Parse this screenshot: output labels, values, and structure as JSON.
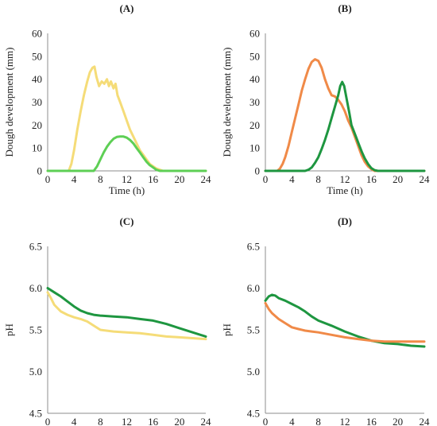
{
  "chart_data": [
    {
      "type": "line",
      "panel_label": "(A)",
      "xlabel": "Time (h)",
      "ylabel": "Dough development (mm)",
      "xlim": [
        0,
        24
      ],
      "ylim": [
        0,
        60
      ],
      "xticks": [
        0,
        4,
        8,
        12,
        16,
        20,
        24
      ],
      "yticks": [
        0,
        10,
        20,
        30,
        40,
        50,
        60
      ],
      "ytick_labels": [
        "0",
        "10",
        "20",
        "30",
        "40",
        "50",
        "60"
      ],
      "series": [
        {
          "color": "#f5dc78",
          "points": [
            [
              0,
              0
            ],
            [
              3.2,
              0
            ],
            [
              3.6,
              3
            ],
            [
              4.0,
              9
            ],
            [
              4.5,
              18
            ],
            [
              5.0,
              26
            ],
            [
              5.5,
              33
            ],
            [
              6.0,
              39
            ],
            [
              6.4,
              43
            ],
            [
              6.8,
              45
            ],
            [
              7.1,
              45.5
            ],
            [
              7.4,
              41
            ],
            [
              7.8,
              37
            ],
            [
              8.2,
              39
            ],
            [
              8.6,
              38
            ],
            [
              9.0,
              40
            ],
            [
              9.3,
              37
            ],
            [
              9.6,
              39
            ],
            [
              10.0,
              36
            ],
            [
              10.3,
              38
            ],
            [
              10.6,
              33
            ],
            [
              11.0,
              30
            ],
            [
              11.5,
              26
            ],
            [
              12.0,
              22
            ],
            [
              12.5,
              18
            ],
            [
              13.0,
              15
            ],
            [
              13.5,
              12
            ],
            [
              14.0,
              9
            ],
            [
              14.5,
              7
            ],
            [
              15.0,
              5
            ],
            [
              15.5,
              3
            ],
            [
              16.0,
              2
            ],
            [
              16.5,
              1
            ],
            [
              17.0,
              0.5
            ],
            [
              17.5,
              0
            ],
            [
              24,
              0
            ]
          ]
        },
        {
          "color": "#5ecf55",
          "points": [
            [
              0,
              0
            ],
            [
              7.0,
              0
            ],
            [
              7.5,
              2
            ],
            [
              8.0,
              5
            ],
            [
              8.5,
              8
            ],
            [
              9.0,
              10.5
            ],
            [
              9.5,
              12.5
            ],
            [
              10.0,
              14
            ],
            [
              10.5,
              14.8
            ],
            [
              11.0,
              15
            ],
            [
              11.5,
              15
            ],
            [
              12.0,
              14.5
            ],
            [
              12.5,
              13.5
            ],
            [
              13.0,
              12
            ],
            [
              13.5,
              10
            ],
            [
              14.0,
              8
            ],
            [
              14.5,
              6
            ],
            [
              15.0,
              4
            ],
            [
              15.5,
              2.5
            ],
            [
              16.0,
              1.5
            ],
            [
              16.5,
              0.5
            ],
            [
              17.0,
              0
            ],
            [
              24,
              0
            ]
          ]
        }
      ]
    },
    {
      "type": "line",
      "panel_label": "(B)",
      "xlabel": "Time (h)",
      "ylabel": "Dough development (mm)",
      "xlim": [
        0,
        24
      ],
      "ylim": [
        0,
        60
      ],
      "xticks": [
        0,
        4,
        8,
        12,
        16,
        20,
        24
      ],
      "yticks": [
        0,
        10,
        20,
        30,
        40,
        50,
        60
      ],
      "ytick_labels": [
        "0",
        "10",
        "20",
        "30",
        "40",
        "50",
        "60"
      ],
      "series": [
        {
          "color": "#f08a48",
          "points": [
            [
              0,
              0
            ],
            [
              1.8,
              0
            ],
            [
              2.2,
              1
            ],
            [
              2.6,
              3
            ],
            [
              3.0,
              6
            ],
            [
              3.5,
              11
            ],
            [
              4.0,
              17
            ],
            [
              4.5,
              23
            ],
            [
              5.0,
              29
            ],
            [
              5.5,
              35
            ],
            [
              6.0,
              40
            ],
            [
              6.5,
              44.5
            ],
            [
              7.0,
              47.5
            ],
            [
              7.5,
              48.7
            ],
            [
              8.0,
              48
            ],
            [
              8.5,
              45
            ],
            [
              9.0,
              40
            ],
            [
              9.5,
              36
            ],
            [
              10.0,
              33
            ],
            [
              10.5,
              32.5
            ],
            [
              11.0,
              31
            ],
            [
              11.5,
              29
            ],
            [
              12.0,
              26
            ],
            [
              12.5,
              22
            ],
            [
              13.0,
              19
            ],
            [
              13.5,
              15
            ],
            [
              14.0,
              11
            ],
            [
              14.5,
              7
            ],
            [
              15.0,
              4
            ],
            [
              15.5,
              2
            ],
            [
              16.0,
              0.8
            ],
            [
              16.5,
              0
            ],
            [
              24,
              0
            ]
          ]
        },
        {
          "color": "#1e9640",
          "points": [
            [
              0,
              0
            ],
            [
              6.0,
              0
            ],
            [
              6.5,
              0.5
            ],
            [
              7.0,
              1.5
            ],
            [
              7.5,
              3.5
            ],
            [
              8.0,
              6
            ],
            [
              8.5,
              9.5
            ],
            [
              9.0,
              13.5
            ],
            [
              9.5,
              18
            ],
            [
              10.0,
              23
            ],
            [
              10.5,
              28
            ],
            [
              11.0,
              33
            ],
            [
              11.3,
              37
            ],
            [
              11.6,
              38.8
            ],
            [
              11.9,
              37
            ],
            [
              12.3,
              31
            ],
            [
              12.7,
              25
            ],
            [
              13.0,
              20
            ],
            [
              13.4,
              17
            ],
            [
              13.8,
              14
            ],
            [
              14.2,
              11
            ],
            [
              14.6,
              8
            ],
            [
              15.0,
              5.5
            ],
            [
              15.5,
              3
            ],
            [
              16.0,
              1.2
            ],
            [
              16.5,
              0.3
            ],
            [
              17.0,
              0
            ],
            [
              24,
              0
            ]
          ]
        }
      ]
    },
    {
      "type": "line",
      "panel_label": "(C)",
      "xlabel": "Time (h)",
      "ylabel": "pH",
      "xlim": [
        0,
        24
      ],
      "ylim": [
        4.5,
        6.5
      ],
      "xticks": [
        0,
        4,
        8,
        12,
        16,
        20,
        24
      ],
      "yticks": [
        4.5,
        5.0,
        5.5,
        6.0,
        6.5
      ],
      "ytick_labels": [
        "4.5",
        "5.0",
        "5.5",
        "6.0",
        "6.5"
      ],
      "series": [
        {
          "color": "#1e9640",
          "points": [
            [
              0,
              6.0
            ],
            [
              1,
              5.95
            ],
            [
              2,
              5.9
            ],
            [
              3,
              5.84
            ],
            [
              4,
              5.78
            ],
            [
              5,
              5.73
            ],
            [
              6,
              5.7
            ],
            [
              7,
              5.68
            ],
            [
              8,
              5.67
            ],
            [
              10,
              5.66
            ],
            [
              12,
              5.65
            ],
            [
              14,
              5.63
            ],
            [
              16,
              5.61
            ],
            [
              18,
              5.57
            ],
            [
              20,
              5.52
            ],
            [
              22,
              5.47
            ],
            [
              24,
              5.42
            ]
          ]
        },
        {
          "color": "#f5dc78",
          "points": [
            [
              0,
              5.95
            ],
            [
              0.5,
              5.88
            ],
            [
              1,
              5.8
            ],
            [
              2,
              5.72
            ],
            [
              3,
              5.68
            ],
            [
              4,
              5.65
            ],
            [
              5,
              5.63
            ],
            [
              6,
              5.6
            ],
            [
              7,
              5.55
            ],
            [
              8,
              5.5
            ],
            [
              10,
              5.48
            ],
            [
              12,
              5.47
            ],
            [
              14,
              5.46
            ],
            [
              16,
              5.44
            ],
            [
              18,
              5.42
            ],
            [
              20,
              5.41
            ],
            [
              22,
              5.4
            ],
            [
              24,
              5.39
            ]
          ]
        }
      ]
    },
    {
      "type": "line",
      "panel_label": "(D)",
      "xlabel": "Time (h)",
      "ylabel": "pH",
      "xlim": [
        0,
        24
      ],
      "ylim": [
        4.5,
        6.5
      ],
      "xticks": [
        0,
        4,
        8,
        12,
        16,
        20,
        24
      ],
      "yticks": [
        4.5,
        5.0,
        5.5,
        6.0,
        6.5
      ],
      "ytick_labels": [
        "4.5",
        "5.0",
        "5.5",
        "6.0",
        "6.5"
      ],
      "series": [
        {
          "color": "#1e9640",
          "points": [
            [
              0,
              5.85
            ],
            [
              0.5,
              5.9
            ],
            [
              1,
              5.92
            ],
            [
              1.5,
              5.91
            ],
            [
              2,
              5.88
            ],
            [
              3,
              5.85
            ],
            [
              4,
              5.81
            ],
            [
              5,
              5.77
            ],
            [
              6,
              5.72
            ],
            [
              7,
              5.66
            ],
            [
              8,
              5.61
            ],
            [
              10,
              5.55
            ],
            [
              12,
              5.48
            ],
            [
              14,
              5.42
            ],
            [
              16,
              5.37
            ],
            [
              18,
              5.34
            ],
            [
              20,
              5.33
            ],
            [
              22,
              5.31
            ],
            [
              24,
              5.3
            ]
          ]
        },
        {
          "color": "#f08a48",
          "points": [
            [
              0,
              5.82
            ],
            [
              0.5,
              5.75
            ],
            [
              1,
              5.7
            ],
            [
              2,
              5.63
            ],
            [
              3,
              5.58
            ],
            [
              4,
              5.53
            ],
            [
              5,
              5.51
            ],
            [
              6,
              5.49
            ],
            [
              7,
              5.48
            ],
            [
              8,
              5.47
            ],
            [
              10,
              5.44
            ],
            [
              12,
              5.41
            ],
            [
              14,
              5.39
            ],
            [
              16,
              5.37
            ],
            [
              18,
              5.36
            ],
            [
              20,
              5.36
            ],
            [
              22,
              5.36
            ],
            [
              24,
              5.36
            ]
          ]
        }
      ]
    }
  ]
}
